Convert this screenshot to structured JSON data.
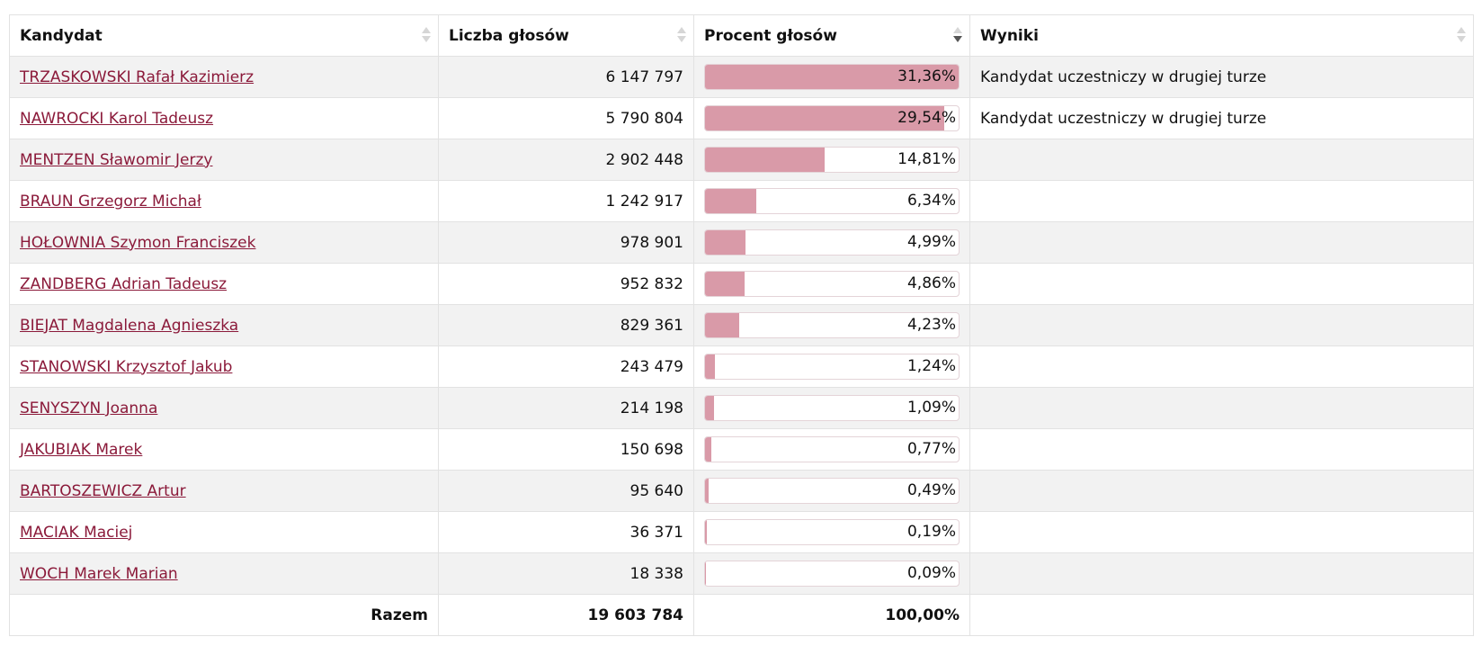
{
  "table": {
    "headers": [
      "Kandydat",
      "Liczba głosów",
      "Procent głosów",
      "Wyniki"
    ],
    "rows": [
      {
        "candidate": "TRZASKOWSKI Rafał Kazimierz",
        "votes": "6 147 797",
        "percent": {
          "value": 31.36,
          "label": "31,36%"
        },
        "result": "Kandydat uczestniczy w drugiej turze"
      },
      {
        "candidate": "NAWROCKI Karol Tadeusz",
        "votes": "5 790 804",
        "percent": {
          "value": 29.54,
          "label": "29,54%"
        },
        "result": "Kandydat uczestniczy w drugiej turze"
      },
      {
        "candidate": "MENTZEN Sławomir Jerzy",
        "votes": "2 902 448",
        "percent": {
          "value": 14.81,
          "label": "14,81%"
        }
      },
      {
        "candidate": "BRAUN Grzegorz Michał",
        "votes": "1 242 917",
        "percent": {
          "value": 6.34,
          "label": "6,34%"
        }
      },
      {
        "candidate": "HOŁOWNIA Szymon Franciszek",
        "votes": "978 901",
        "percent": {
          "value": 4.99,
          "label": "4,99%"
        }
      },
      {
        "candidate": "ZANDBERG Adrian Tadeusz",
        "votes": "952 832",
        "percent": {
          "value": 4.86,
          "label": "4,86%"
        }
      },
      {
        "candidate": "BIEJAT Magdalena Agnieszka",
        "votes": "829 361",
        "percent": {
          "value": 4.23,
          "label": "4,23%"
        }
      },
      {
        "candidate": "STANOWSKI Krzysztof Jakub",
        "votes": "243 479",
        "percent": {
          "value": 1.24,
          "label": "1,24%"
        }
      },
      {
        "candidate": "SENYSZYN Joanna",
        "votes": "214 198",
        "percent": {
          "value": 1.09,
          "label": "1,09%"
        }
      },
      {
        "candidate": "JAKUBIAK Marek",
        "votes": "150 698",
        "percent": {
          "value": 0.77,
          "label": "0,77%"
        }
      },
      {
        "candidate": "BARTOSZEWICZ Artur",
        "votes": "95 640",
        "percent": {
          "value": 0.49,
          "label": "0,49%"
        }
      },
      {
        "candidate": "MACIAK Maciej",
        "votes": "36 371",
        "percent": {
          "value": 0.19,
          "label": "0,19%"
        }
      },
      {
        "candidate": "WOCH Marek Marian",
        "votes": "18 338",
        "percent": {
          "value": 0.09,
          "label": "0,09%"
        }
      }
    ],
    "total": {
      "label": "Razem",
      "votes": "19 603 784",
      "percent": "100,00%"
    }
  }
}
